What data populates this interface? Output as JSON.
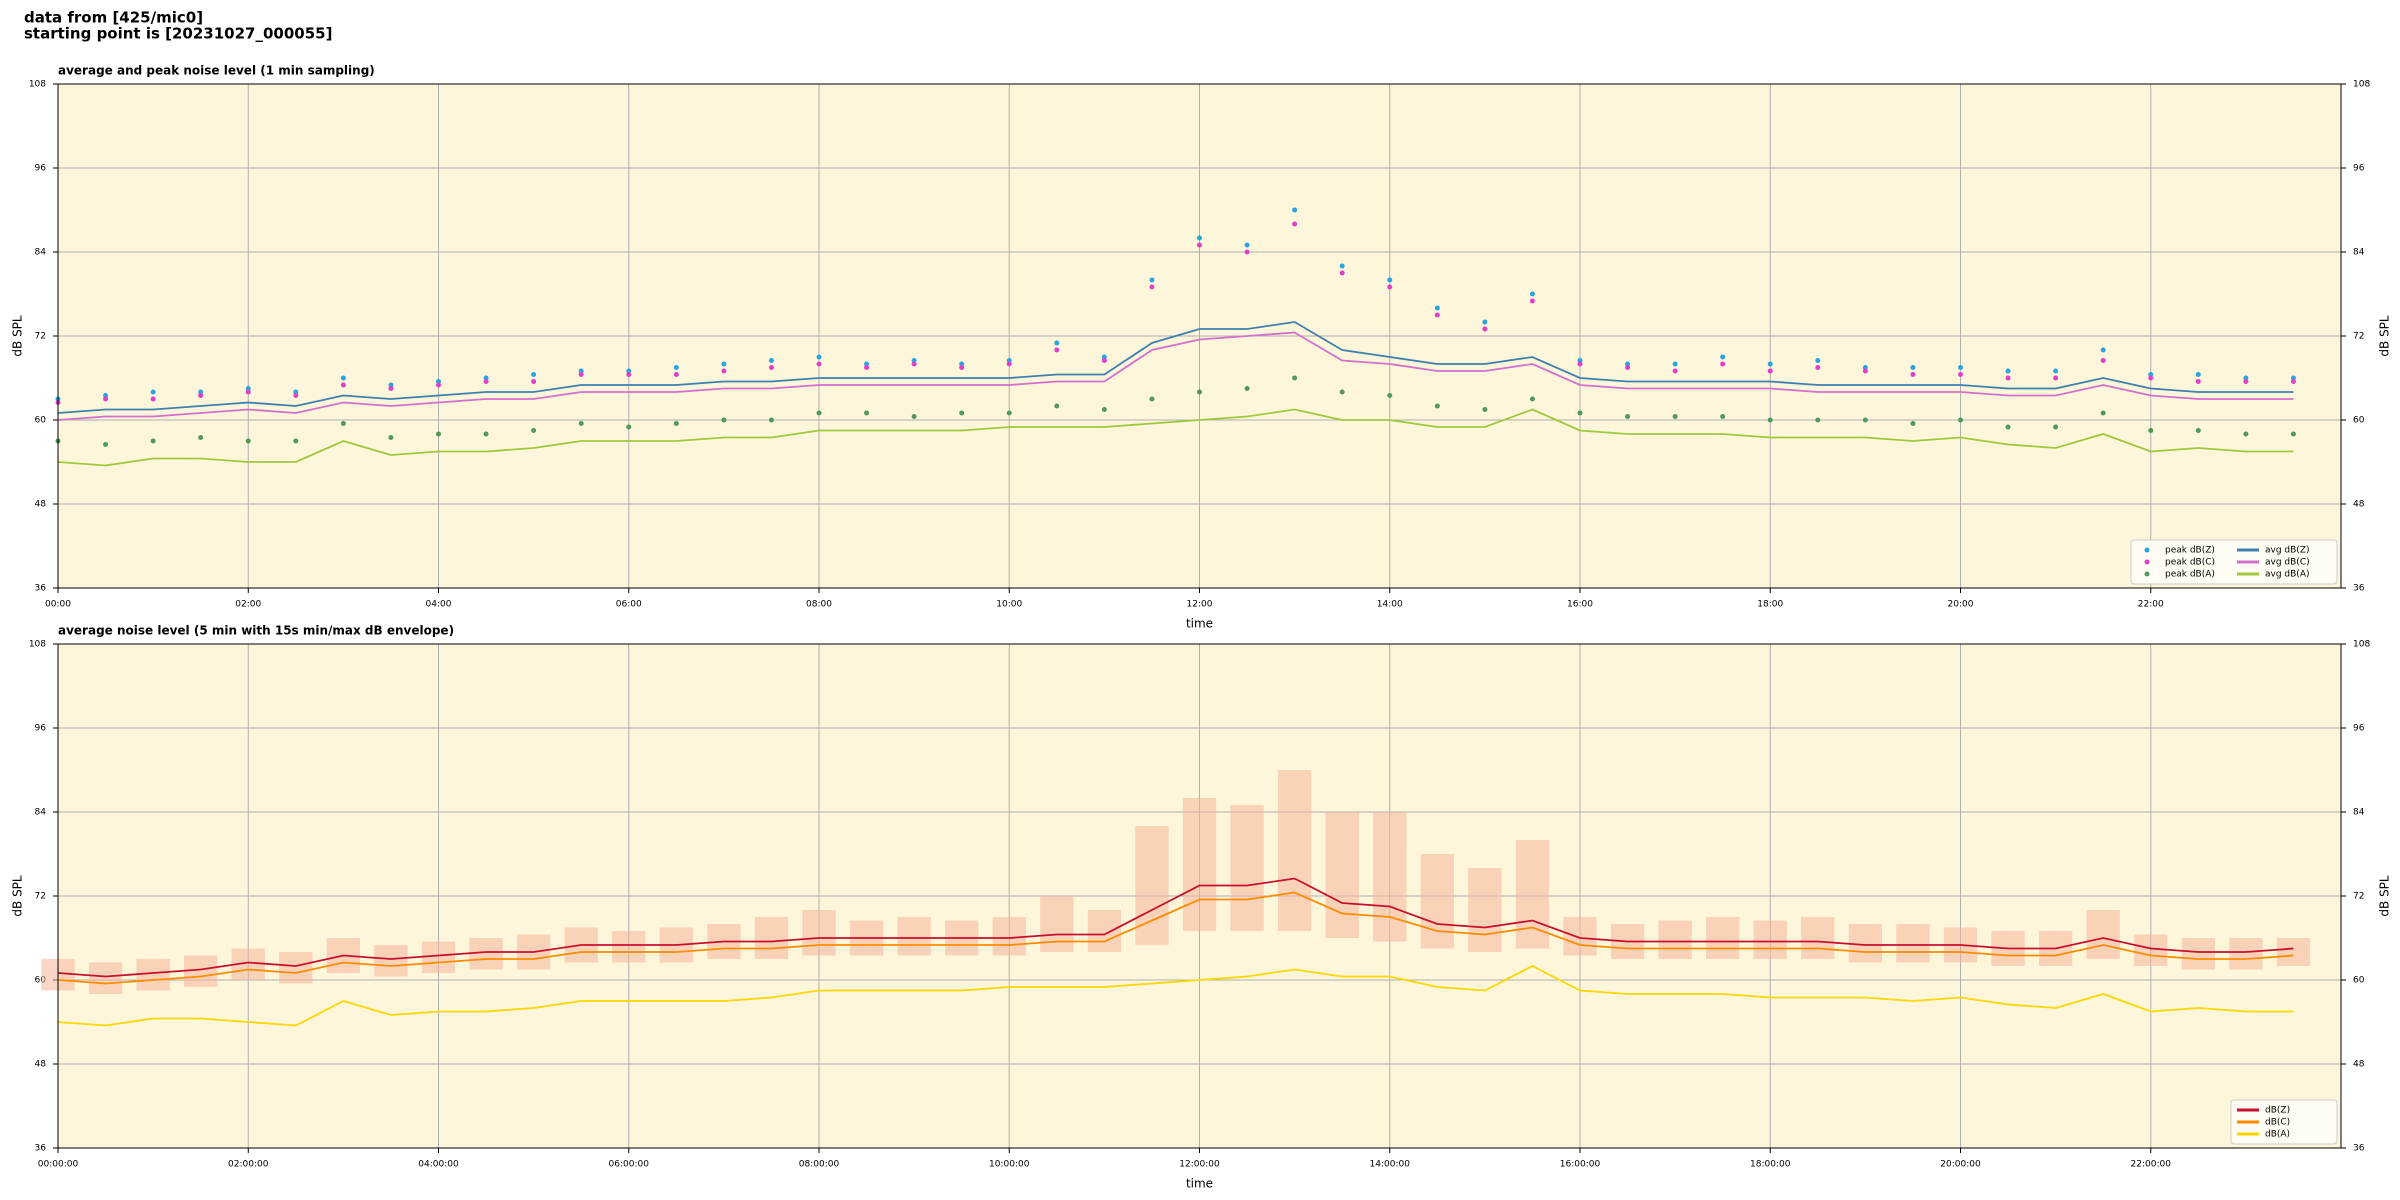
{
  "header": {
    "line1": "data from [425/mic0]",
    "line2": "starting point is [20231027_000055]"
  },
  "chart_data": [
    {
      "type": "line",
      "title": "average and peak noise level (1 min sampling)",
      "x_label": "time",
      "y_label": "dB SPL",
      "background": "#fdf6da",
      "grid": true,
      "legend": "lower right",
      "legend_columns": 2,
      "xlim": [
        0,
        24
      ],
      "ylim": [
        36,
        108
      ],
      "yticks": [
        36,
        48,
        60,
        72,
        84,
        96,
        108
      ],
      "xticks": [
        {
          "value": 0,
          "label": "00:00"
        },
        {
          "value": 2,
          "label": "02:00"
        },
        {
          "value": 4,
          "label": "04:00"
        },
        {
          "value": 6,
          "label": "06:00"
        },
        {
          "value": 8,
          "label": "08:00"
        },
        {
          "value": 10,
          "label": "10:00"
        },
        {
          "value": 12,
          "label": "12:00"
        },
        {
          "value": 14,
          "label": "14:00"
        },
        {
          "value": 16,
          "label": "16:00"
        },
        {
          "value": 18,
          "label": "18:00"
        },
        {
          "value": 20,
          "label": "20:00"
        },
        {
          "value": 22,
          "label": "22:00"
        }
      ],
      "x": [
        0,
        0.5,
        1,
        1.5,
        2,
        2.5,
        3,
        3.5,
        4,
        4.5,
        5,
        5.5,
        6,
        6.5,
        7,
        7.5,
        8,
        8.5,
        9,
        9.5,
        10,
        10.5,
        11,
        11.5,
        12,
        12.5,
        13,
        13.5,
        14,
        14.5,
        15,
        15.5,
        16,
        16.5,
        17,
        17.5,
        18,
        18.5,
        19,
        19.5,
        20,
        20.5,
        21,
        21.5,
        22,
        22.5,
        23,
        23.5
      ],
      "series": [
        {
          "name": "peak dB(Z)",
          "style": "markers",
          "color": "#27a5e0",
          "values": [
            63,
            63.5,
            64,
            64,
            64.5,
            64,
            66,
            65,
            65.5,
            66,
            66.5,
            67,
            67,
            67.5,
            68,
            68.5,
            69,
            68,
            68.5,
            68,
            68.5,
            71,
            69,
            80,
            86,
            85,
            90,
            82,
            80,
            76,
            74,
            78,
            68.5,
            68,
            68,
            69,
            68,
            68.5,
            67.5,
            67.5,
            67.5,
            67,
            67,
            70,
            66.5,
            66.5,
            66,
            66
          ]
        },
        {
          "name": "peak dB(C)",
          "style": "markers",
          "color": "#e23fc9",
          "values": [
            62.5,
            63,
            63,
            63.5,
            64,
            63.5,
            65,
            64.5,
            65,
            65.5,
            65.5,
            66.5,
            66.5,
            66.5,
            67,
            67.5,
            68,
            67.5,
            68,
            67.5,
            68,
            70,
            68.5,
            79,
            85,
            84,
            88,
            81,
            79,
            75,
            73,
            77,
            68,
            67.5,
            67,
            68,
            67,
            67.5,
            67,
            66.5,
            66.5,
            66,
            66,
            68.5,
            66,
            65.5,
            65.5,
            65.5
          ]
        },
        {
          "name": "peak dB(A)",
          "style": "markers",
          "color": "#4f9a5a",
          "values": [
            57,
            56.5,
            57,
            57.5,
            57,
            57,
            59.5,
            57.5,
            58,
            58,
            58.5,
            59.5,
            59,
            59.5,
            60,
            60,
            61,
            61,
            60.5,
            61,
            61,
            62,
            61.5,
            63,
            64,
            64.5,
            66,
            64,
            63.5,
            62,
            61.5,
            63,
            61,
            60.5,
            60.5,
            60.5,
            60,
            60,
            60,
            59.5,
            60,
            59,
            59,
            61,
            58.5,
            58.5,
            58,
            58
          ]
        },
        {
          "name": "avg dB(Z)",
          "style": "line",
          "color": "#3d7fb0",
          "values": [
            61,
            61.5,
            61.5,
            62,
            62.5,
            62,
            63.5,
            63,
            63.5,
            64,
            64,
            65,
            65,
            65,
            65.5,
            65.5,
            66,
            66,
            66,
            66,
            66,
            66.5,
            66.5,
            71,
            73,
            73,
            74,
            70,
            69,
            68,
            68,
            69,
            66,
            65.5,
            65.5,
            65.5,
            65.5,
            65,
            65,
            65,
            65,
            64.5,
            64.5,
            66,
            64.5,
            64,
            64,
            64
          ]
        },
        {
          "name": "avg dB(C)",
          "style": "line",
          "color": "#d46fd0",
          "values": [
            60,
            60.5,
            60.5,
            61,
            61.5,
            61,
            62.5,
            62,
            62.5,
            63,
            63,
            64,
            64,
            64,
            64.5,
            64.5,
            65,
            65,
            65,
            65,
            65,
            65.5,
            65.5,
            70,
            71.5,
            72,
            72.5,
            68.5,
            68,
            67,
            67,
            68,
            65,
            64.5,
            64.5,
            64.5,
            64.5,
            64,
            64,
            64,
            64,
            63.5,
            63.5,
            65,
            63.5,
            63,
            63,
            63
          ]
        },
        {
          "name": "avg dB(A)",
          "style": "line",
          "color": "#9fc83c",
          "values": [
            54,
            53.5,
            54.5,
            54.5,
            54,
            54,
            57,
            55,
            55.5,
            55.5,
            56,
            57,
            57,
            57,
            57.5,
            57.5,
            58.5,
            58.5,
            58.5,
            58.5,
            59,
            59,
            59,
            59.5,
            60,
            60.5,
            61.5,
            60,
            60,
            59,
            59,
            61.5,
            58.5,
            58,
            58,
            58,
            57.5,
            57.5,
            57.5,
            57,
            57.5,
            56.5,
            56,
            58,
            55.5,
            56,
            55.5,
            55.5
          ]
        }
      ]
    },
    {
      "type": "line",
      "title": "average noise level (5 min with 15s min/max dB envelope)",
      "x_label": "time",
      "y_label": "dB SPL",
      "background": "#fdf6da",
      "grid": true,
      "legend": "lower right",
      "legend_columns": 1,
      "xlim": [
        0,
        24
      ],
      "ylim": [
        36,
        108
      ],
      "yticks": [
        36,
        48,
        60,
        72,
        84,
        96,
        108
      ],
      "xticks": [
        {
          "value": 0,
          "label": "00:00:00"
        },
        {
          "value": 2,
          "label": "02:00:00"
        },
        {
          "value": 4,
          "label": "04:00:00"
        },
        {
          "value": 6,
          "label": "06:00:00"
        },
        {
          "value": 8,
          "label": "08:00:00"
        },
        {
          "value": 10,
          "label": "10:00:00"
        },
        {
          "value": 12,
          "label": "12:00:00"
        },
        {
          "value": 14,
          "label": "14:00:00"
        },
        {
          "value": 16,
          "label": "16:00:00"
        },
        {
          "value": 18,
          "label": "18:00:00"
        },
        {
          "value": 20,
          "label": "20:00:00"
        },
        {
          "value": 22,
          "label": "22:00:00"
        }
      ],
      "x": [
        0,
        0.5,
        1,
        1.5,
        2,
        2.5,
        3,
        3.5,
        4,
        4.5,
        5,
        5.5,
        6,
        6.5,
        7,
        7.5,
        8,
        8.5,
        9,
        9.5,
        10,
        10.5,
        11,
        11.5,
        12,
        12.5,
        13,
        13.5,
        14,
        14.5,
        15,
        15.5,
        16,
        16.5,
        17,
        17.5,
        18,
        18.5,
        19,
        19.5,
        20,
        20.5,
        21,
        21.5,
        22,
        22.5,
        23,
        23.5
      ],
      "envelope": {
        "color": "#f5b49c",
        "min": [
          58.5,
          58,
          58.5,
          59,
          60,
          59.5,
          61,
          60.5,
          61,
          61.5,
          61.5,
          62.5,
          62.5,
          62.5,
          63,
          63,
          63.5,
          63.5,
          63.5,
          63.5,
          63.5,
          64,
          64,
          65,
          67,
          67,
          67,
          66,
          65.5,
          64.5,
          64,
          64.5,
          63.5,
          63,
          63,
          63,
          63,
          63,
          62.5,
          62.5,
          62.5,
          62,
          62,
          63,
          62,
          61.5,
          61.5,
          62
        ],
        "max": [
          63,
          62.5,
          63,
          63.5,
          64.5,
          64,
          66,
          65,
          65.5,
          66,
          66.5,
          67.5,
          67,
          67.5,
          68,
          69,
          70,
          68.5,
          69,
          68.5,
          69,
          72,
          70,
          82,
          86,
          85,
          90,
          84,
          84,
          78,
          76,
          80,
          69,
          68,
          68.5,
          69,
          68.5,
          69,
          68,
          68,
          67.5,
          67,
          67,
          70,
          66.5,
          66,
          66,
          66
        ]
      },
      "series": [
        {
          "name": "dB(Z)",
          "style": "line",
          "color": "#c8102e",
          "values": [
            61,
            60.5,
            61,
            61.5,
            62.5,
            62,
            63.5,
            63,
            63.5,
            64,
            64,
            65,
            65,
            65,
            65.5,
            65.5,
            66,
            66,
            66,
            66,
            66,
            66.5,
            66.5,
            70,
            73.5,
            73.5,
            74.5,
            71,
            70.5,
            68,
            67.5,
            68.5,
            66,
            65.5,
            65.5,
            65.5,
            65.5,
            65.5,
            65,
            65,
            65,
            64.5,
            64.5,
            66,
            64.5,
            64,
            64,
            64.5
          ]
        },
        {
          "name": "dB(C)",
          "style": "line",
          "color": "#ff8c00",
          "values": [
            60,
            59.5,
            60,
            60.5,
            61.5,
            61,
            62.5,
            62,
            62.5,
            63,
            63,
            64,
            64,
            64,
            64.5,
            64.5,
            65,
            65,
            65,
            65,
            65,
            65.5,
            65.5,
            68.5,
            71.5,
            71.5,
            72.5,
            69.5,
            69,
            67,
            66.5,
            67.5,
            65,
            64.5,
            64.5,
            64.5,
            64.5,
            64.5,
            64,
            64,
            64,
            63.5,
            63.5,
            65,
            63.5,
            63,
            63,
            63.5
          ]
        },
        {
          "name": "dB(A)",
          "style": "line",
          "color": "#ffd700",
          "values": [
            54,
            53.5,
            54.5,
            54.5,
            54,
            53.5,
            57,
            55,
            55.5,
            55.5,
            56,
            57,
            57,
            57,
            57,
            57.5,
            58.5,
            58.5,
            58.5,
            58.5,
            59,
            59,
            59,
            59.5,
            60,
            60.5,
            61.5,
            60.5,
            60.5,
            59,
            58.5,
            62,
            58.5,
            58,
            58,
            58,
            57.5,
            57.5,
            57.5,
            57,
            57.5,
            56.5,
            56,
            58,
            55.5,
            56,
            55.5,
            55.5
          ]
        }
      ]
    }
  ]
}
